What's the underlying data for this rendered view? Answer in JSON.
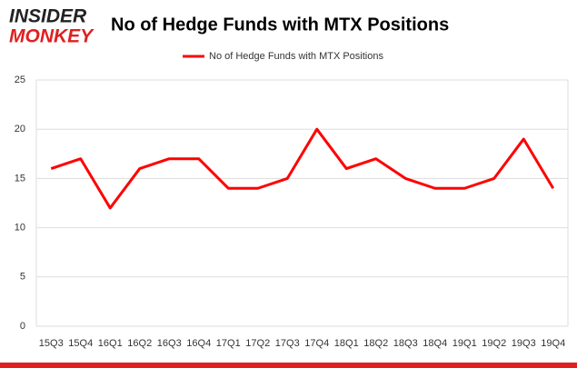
{
  "logo": {
    "top": "INSIDER",
    "bottom": "MONKEY"
  },
  "chart_data": {
    "type": "line",
    "title": "No of Hedge Funds with MTX Positions",
    "categories": [
      "15Q3",
      "15Q4",
      "16Q1",
      "16Q2",
      "16Q3",
      "16Q4",
      "17Q1",
      "17Q2",
      "17Q3",
      "17Q4",
      "18Q1",
      "18Q2",
      "18Q3",
      "18Q4",
      "19Q1",
      "19Q2",
      "19Q3",
      "19Q4"
    ],
    "series": [
      {
        "name": "No of Hedge Funds with MTX Positions",
        "color": "#ff0000",
        "values": [
          16,
          17,
          12,
          16,
          17,
          17,
          14,
          14,
          15,
          20,
          16,
          17,
          15,
          14,
          14,
          15,
          19,
          14
        ]
      }
    ],
    "ylim": [
      0,
      25
    ],
    "yticks": [
      0,
      5,
      10,
      15,
      20,
      25
    ],
    "grid": true,
    "legend": "top"
  }
}
